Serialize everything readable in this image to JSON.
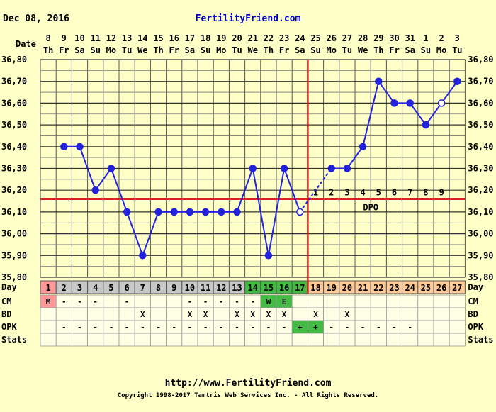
{
  "header": {
    "date": "Dec 08, 2016",
    "site": "FertilityFriend.com"
  },
  "footer": {
    "url": "http://www.FertilityFriend.com",
    "copyright": "Copyright 1998-2017 Tamtris Web Services Inc. - All Rights Reserved."
  },
  "colors": {
    "background": "#ffffc8",
    "line": "#2222dd",
    "coverline": "#dd2222",
    "day_gray": "#c8c8c8",
    "day_green": "#44bb44",
    "day_orange": "#ffcc99",
    "menstruation": "#ff9999",
    "opk_positive": "#44bb44"
  },
  "chart_data": {
    "type": "line",
    "row_labels": {
      "date": "Date",
      "day": "Day",
      "cm": "CM",
      "bd": "BD",
      "opk": "OPK",
      "stats": "Stats"
    },
    "dates": [
      "8",
      "9",
      "10",
      "11",
      "12",
      "13",
      "14",
      "15",
      "16",
      "17",
      "18",
      "19",
      "20",
      "21",
      "22",
      "23",
      "24",
      "25",
      "26",
      "27",
      "28",
      "29",
      "30",
      "31",
      "1",
      "2",
      "3"
    ],
    "weekdays": [
      "Th",
      "Fr",
      "Sa",
      "Su",
      "Mo",
      "Tu",
      "We",
      "Th",
      "Fr",
      "Sa",
      "Su",
      "Mo",
      "Tu",
      "We",
      "Th",
      "Fr",
      "Sa",
      "Su",
      "Mo",
      "Tu",
      "We",
      "Th",
      "Fr",
      "Sa",
      "Su",
      "Mo",
      "Tu"
    ],
    "days": [
      "1",
      "2",
      "3",
      "4",
      "5",
      "6",
      "7",
      "8",
      "9",
      "10",
      "11",
      "12",
      "13",
      "14",
      "15",
      "16",
      "17",
      "18",
      "19",
      "20",
      "21",
      "22",
      "23",
      "24",
      "25",
      "26",
      "27"
    ],
    "day_colors": [
      "pink",
      "gray",
      "gray",
      "gray",
      "gray",
      "gray",
      "gray",
      "gray",
      "gray",
      "gray",
      "gray",
      "gray",
      "gray",
      "green",
      "green",
      "green",
      "green",
      "orange",
      "orange",
      "orange",
      "orange",
      "orange",
      "orange",
      "orange",
      "orange",
      "orange",
      "orange"
    ],
    "temperatures": [
      null,
      36.4,
      36.4,
      36.2,
      36.3,
      36.1,
      35.9,
      36.1,
      36.1,
      36.1,
      36.1,
      36.1,
      36.1,
      36.3,
      35.9,
      36.3,
      36.1,
      null,
      36.3,
      36.3,
      36.4,
      36.7,
      36.6,
      36.6,
      36.5,
      36.6,
      36.7
    ],
    "open_points": [
      16,
      25
    ],
    "ylim": [
      35.8,
      36.8
    ],
    "ytick_labels": [
      "36,80",
      "36,70",
      "36,60",
      "36,50",
      "36,40",
      "36,30",
      "36,20",
      "36,10",
      "36,00",
      "35,90",
      "35,80"
    ],
    "coverline": 36.16,
    "ovulation_day": 17,
    "dpo_label": "DPO",
    "dpo_numbers": [
      "1",
      "2",
      "3",
      "4",
      "5",
      "6",
      "7",
      "8",
      "9"
    ],
    "cm": [
      "M",
      "-",
      "-",
      "-",
      "",
      "-",
      "",
      "",
      "",
      "-",
      "-",
      "-",
      "-",
      "-",
      "W",
      "E",
      "",
      "",
      "",
      "",
      "",
      "",
      "",
      "",
      "",
      "",
      ""
    ],
    "bd": [
      "",
      "",
      "",
      "",
      "",
      "",
      "X",
      "",
      "",
      "X",
      "X",
      "",
      "X",
      "X",
      "X",
      "X",
      "",
      "X",
      "",
      "X",
      "",
      "",
      "",
      "",
      "",
      "",
      ""
    ],
    "opk": [
      "",
      "-",
      "-",
      "-",
      "-",
      "-",
      "-",
      "-",
      "-",
      "-",
      "-",
      "-",
      "-",
      "-",
      "-",
      "-",
      "+",
      "+",
      "-",
      "-",
      "-",
      "-",
      "-",
      "-",
      "",
      "",
      ""
    ]
  }
}
